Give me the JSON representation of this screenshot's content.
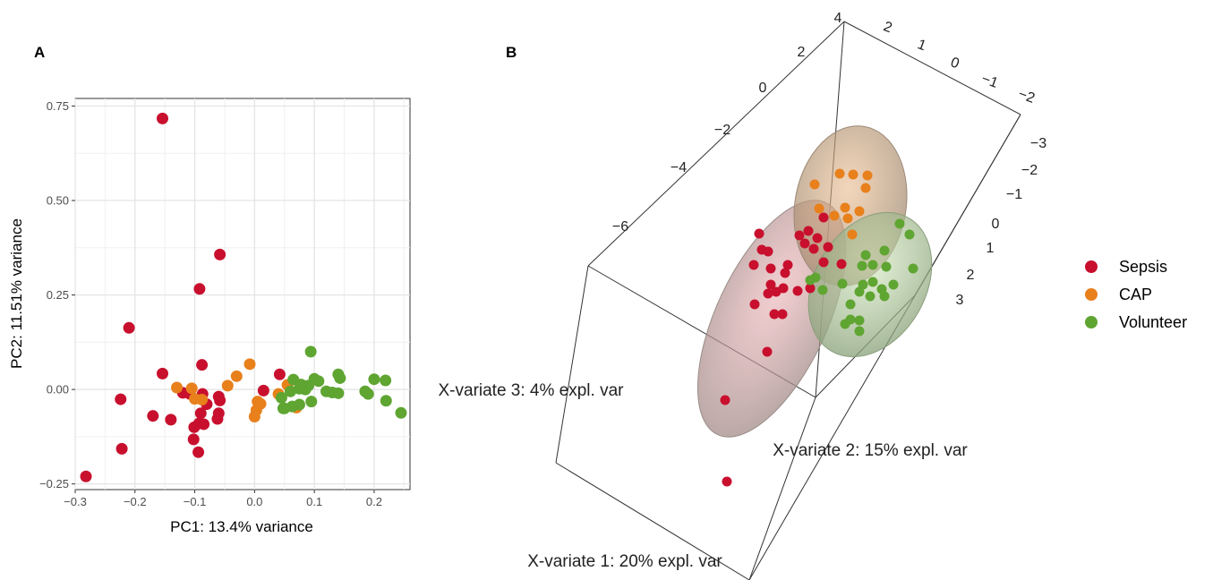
{
  "colors": {
    "Sepsis": "#c8102e",
    "CAP": "#e8801c",
    "Volunteer": "#5fa532"
  },
  "chart_data": [
    {
      "panel": "A",
      "type": "scatter",
      "xlabel": "PC1: 13.4% variance",
      "ylabel": "PC2: 11.51% variance",
      "xlim": [
        -0.3,
        0.26
      ],
      "ylim": [
        -0.265,
        0.77
      ],
      "xticks": [
        -0.3,
        -0.2,
        -0.1,
        0.0,
        0.1,
        0.2
      ],
      "xtick_labels": [
        "−0.3",
        "−0.2",
        "−0.1",
        "0.0",
        "0.1",
        "0.2"
      ],
      "yticks": [
        -0.25,
        0.0,
        0.25,
        0.5,
        0.75
      ],
      "ytick_labels": [
        "−0.25",
        "0.00",
        "0.25",
        "0.50",
        "0.75"
      ],
      "grid": true,
      "series": [
        {
          "name": "Sepsis",
          "color": "#c8102e",
          "points": [
            [
              -0.154,
              0.717
            ],
            [
              -0.058,
              0.357
            ],
            [
              -0.092,
              0.266
            ],
            [
              -0.21,
              0.163
            ],
            [
              -0.088,
              0.065
            ],
            [
              -0.154,
              0.042
            ],
            [
              0.042,
              0.04
            ],
            [
              -0.224,
              -0.026
            ],
            [
              -0.12,
              -0.009
            ],
            [
              -0.108,
              -0.012
            ],
            [
              -0.087,
              -0.012
            ],
            [
              -0.06,
              -0.019
            ],
            [
              -0.058,
              -0.029
            ],
            [
              -0.08,
              -0.039
            ],
            [
              0.015,
              -0.003
            ],
            [
              -0.09,
              -0.063
            ],
            [
              -0.06,
              -0.063
            ],
            [
              -0.17,
              -0.07
            ],
            [
              -0.14,
              -0.08
            ],
            [
              -0.085,
              -0.092
            ],
            [
              -0.062,
              -0.078
            ],
            [
              -0.101,
              -0.1
            ],
            [
              -0.093,
              -0.09
            ],
            [
              -0.102,
              -0.132
            ],
            [
              -0.222,
              -0.157
            ],
            [
              -0.094,
              -0.166
            ],
            [
              -0.282,
              -0.23
            ]
          ]
        },
        {
          "name": "CAP",
          "color": "#e8801c",
          "points": [
            [
              -0.008,
              0.067
            ],
            [
              -0.03,
              0.035
            ],
            [
              -0.045,
              0.01
            ],
            [
              -0.13,
              0.005
            ],
            [
              -0.105,
              0.003
            ],
            [
              -0.1,
              -0.025
            ],
            [
              -0.088,
              -0.027
            ],
            [
              0.005,
              -0.032
            ],
            [
              0.01,
              -0.038
            ],
            [
              0.003,
              -0.055
            ],
            [
              0.055,
              0.012
            ],
            [
              0.04,
              -0.012
            ],
            [
              0.07,
              -0.048
            ],
            [
              0.0,
              -0.072
            ]
          ]
        },
        {
          "name": "Volunteer",
          "color": "#5fa532",
          "points": [
            [
              0.094,
              0.1
            ],
            [
              0.14,
              0.04
            ],
            [
              0.143,
              0.03
            ],
            [
              0.065,
              0.026
            ],
            [
              0.078,
              0.013
            ],
            [
              0.09,
              0.01
            ],
            [
              0.107,
              0.022
            ],
            [
              0.1,
              0.028
            ],
            [
              0.085,
              0.0
            ],
            [
              0.075,
              0.002
            ],
            [
              0.06,
              -0.005
            ],
            [
              0.12,
              -0.005
            ],
            [
              0.13,
              -0.008
            ],
            [
              0.185,
              -0.005
            ],
            [
              0.2,
              0.027
            ],
            [
              0.219,
              0.024
            ],
            [
              0.19,
              -0.012
            ],
            [
              0.22,
              -0.03
            ],
            [
              0.245,
              -0.062
            ],
            [
              0.095,
              -0.032
            ],
            [
              0.075,
              -0.04
            ],
            [
              0.063,
              -0.045
            ],
            [
              0.048,
              -0.05
            ],
            [
              0.045,
              -0.022
            ],
            [
              0.05,
              -0.05
            ],
            [
              0.14,
              -0.01
            ]
          ]
        }
      ]
    },
    {
      "panel": "B",
      "type": "scatter",
      "dimensions": 3,
      "xlabel": "X-variate 1: 20% expl. var",
      "ylabel": "X-variate 2: 15% expl. var",
      "zlabel": "X-variate 3: 4% expl. var",
      "xtick_labels": [
        "4",
        "2",
        "0",
        "−2",
        "−4",
        "−6"
      ],
      "ytick_labels": [
        "2",
        "1",
        "0",
        "−1",
        "−2"
      ],
      "ztick_labels": [
        "−3",
        "−2",
        "−1",
        "0",
        "1",
        "2",
        "3"
      ],
      "confidence_ellipses": [
        "Sepsis",
        "CAP",
        "Volunteer"
      ],
      "series": [
        {
          "name": "Sepsis",
          "color": "#c8102e"
        },
        {
          "name": "CAP",
          "color": "#e8801c"
        },
        {
          "name": "Volunteer",
          "color": "#5fa532"
        }
      ]
    }
  ],
  "legend": {
    "placement": "right",
    "entries": [
      {
        "label": "Sepsis",
        "color": "#c8102e"
      },
      {
        "label": "CAP",
        "color": "#e8801c"
      },
      {
        "label": "Volunteer",
        "color": "#5fa532"
      }
    ]
  },
  "panel_labels": {
    "a": "A",
    "b": "B"
  }
}
